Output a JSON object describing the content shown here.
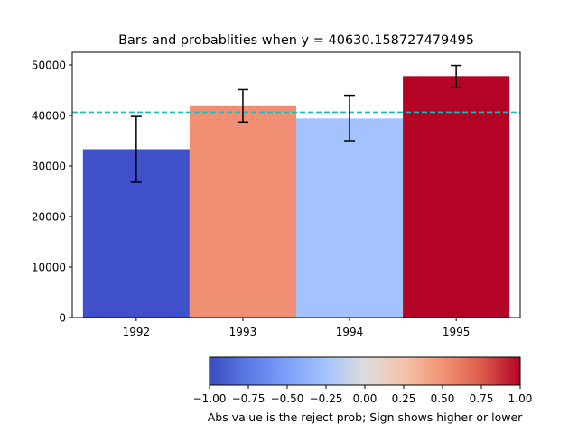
{
  "chart_data": {
    "type": "bar",
    "title": "Bars and probablities when y = 40630.158727479495",
    "categories": [
      "1992",
      "1993",
      "1994",
      "1995"
    ],
    "values": [
      33300,
      42000,
      39400,
      47800
    ],
    "errors": [
      {
        "low": 26800,
        "high": 39800
      },
      {
        "low": 38700,
        "high": 45100
      },
      {
        "low": 35000,
        "high": 44000
      },
      {
        "low": 45600,
        "high": 49900
      }
    ],
    "colors": [
      "#4050cb",
      "#f08f73",
      "#a3c2fe",
      "#b40426"
    ],
    "reference_line": {
      "y": 40630.158727479495,
      "color": "#1fb8b4",
      "style": "dashed"
    },
    "y_ticks": [
      0,
      10000,
      20000,
      30000,
      40000,
      50000
    ],
    "ylim": [
      0,
      52500
    ],
    "xlim": [
      1991.4,
      1995.6
    ],
    "xlabel": "",
    "ylabel": "",
    "colorbar": {
      "label": "Abs value is the reject prob; Sign shows higher or lower",
      "ticks": [
        "−1.00",
        "−0.75",
        "−0.50",
        "−0.25",
        "0.00",
        "0.25",
        "0.50",
        "0.75",
        "1.00"
      ],
      "range": [
        -1,
        1
      ],
      "colormap": "coolwarm"
    }
  }
}
